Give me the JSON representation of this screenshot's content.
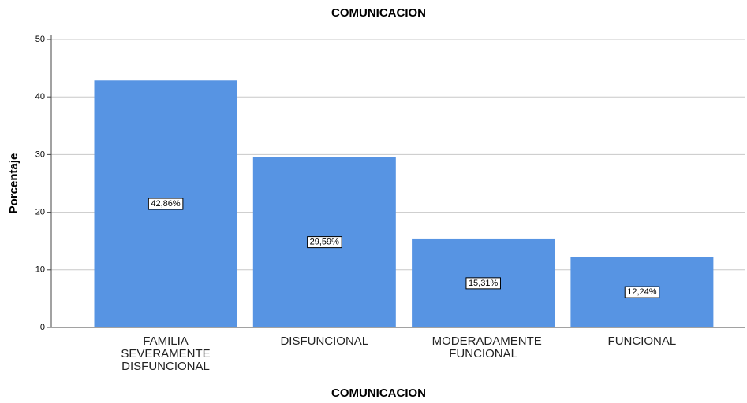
{
  "chart_data": {
    "type": "bar",
    "title": "COMUNICACION",
    "x_label": "COMUNICACION",
    "y_label": "Porcentaje",
    "categories": [
      "FAMILIA SEVERAMENTE DISFUNCIONAL",
      "DISFUNCIONAL",
      "MODERADAMENTE FUNCIONAL",
      "FUNCIONAL"
    ],
    "values": [
      42.86,
      29.59,
      15.31,
      12.24
    ],
    "value_labels": [
      "42,86%",
      "29,59%",
      "15,31%",
      "12,24%"
    ],
    "color": "#5794e3",
    "ylim": [
      0,
      50
    ],
    "yticks": [
      0,
      10,
      20,
      30,
      40,
      50
    ],
    "grid": true
  }
}
